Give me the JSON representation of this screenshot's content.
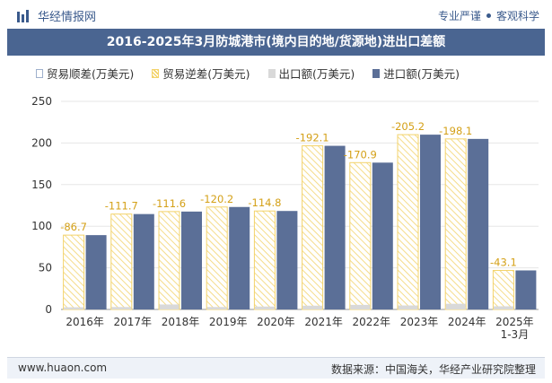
{
  "header": {
    "brand": "华经情报网",
    "tagline_left": "专业严谨",
    "tagline_right": "客观科学"
  },
  "title": "2016-2025年3月防城港市(境内目的地/货源地)进出口差额",
  "legend": [
    {
      "label": "贸易顺差(万美元)",
      "color": "#c9d3e4"
    },
    {
      "label": "贸易逆差(万美元)",
      "color": "#f3d36b"
    },
    {
      "label": "出口额(万美元)",
      "color": "#d9d9d9"
    },
    {
      "label": "进口额(万美元)",
      "color": "#5b6f97"
    }
  ],
  "footer": {
    "url": "www.huaon.com",
    "source": "数据来源：中国海关，华经产业研究院整理"
  },
  "chart_data": {
    "type": "bar",
    "categories": [
      "2016年",
      "2017年",
      "2018年",
      "2019年",
      "2020年",
      "2021年",
      "2022年",
      "2023年",
      "2024年",
      "2025年\n1-3月"
    ],
    "ylim": [
      0,
      250
    ],
    "yticks": [
      0,
      50,
      100,
      150,
      200,
      250
    ],
    "series": [
      {
        "name": "贸易逆差(万美元)",
        "values": [
          -86.7,
          -111.7,
          -111.6,
          -120.2,
          -114.8,
          -192.1,
          -170.9,
          -205.2,
          -198.1,
          -43.1
        ]
      },
      {
        "name": "出口额(万美元)",
        "values": [
          2.6,
          2.9,
          6.0,
          2.9,
          3.5,
          4.5,
          5.5,
          4.8,
          6.8,
          3.8
        ]
      },
      {
        "name": "进口额(万美元)",
        "values": [
          89.3,
          114.6,
          117.6,
          123.1,
          118.3,
          196.6,
          176.4,
          210.0,
          204.9,
          46.9
        ]
      }
    ],
    "data_labels": [
      "-86.7",
      "-111.7",
      "-111.6",
      "-120.2",
      "-114.8",
      "-192.1",
      "-170.9",
      "-205.2",
      "-198.1",
      "-43.1"
    ],
    "watermark": "华经产业研究院"
  }
}
